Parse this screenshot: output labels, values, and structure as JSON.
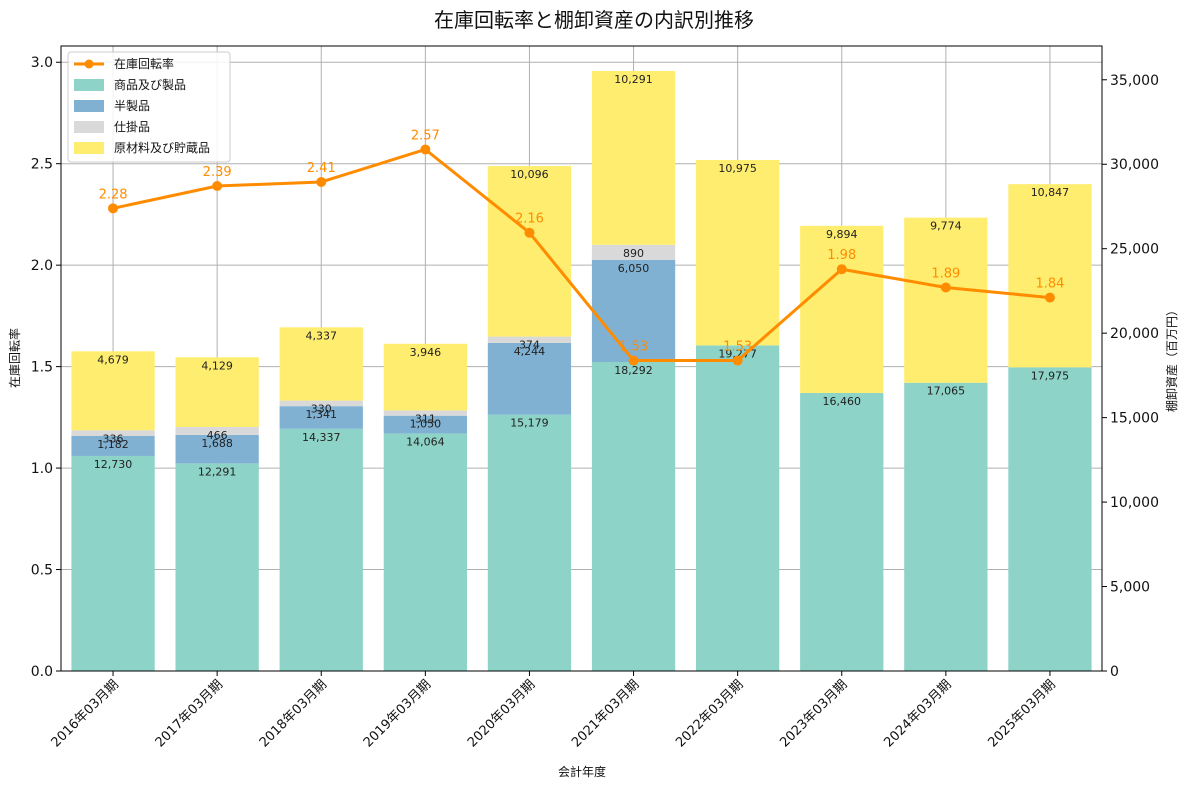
{
  "chart_data": {
    "type": "bar",
    "title": "在庫回転率と棚卸資産の内訳別推移",
    "xlabel": "会計年度",
    "ylabel_left": "在庫回転率",
    "ylabel_right": "棚卸資産（百万円）",
    "ylim_left": [
      0,
      3.08
    ],
    "ylim_right": [
      0,
      37000
    ],
    "yticks_left": [
      "0.0",
      "0.5",
      "1.0",
      "1.5",
      "2.0",
      "2.5",
      "3.0"
    ],
    "yticks_right": [
      "0",
      "5,000",
      "10,000",
      "15,000",
      "20,000",
      "25,000",
      "30,000",
      "35,000"
    ],
    "grid": true,
    "legend_position": "top-left",
    "categories": [
      "2016年03月期",
      "2017年03月期",
      "2018年03月期",
      "2019年03月期",
      "2020年03月期",
      "2021年03月期",
      "2022年03月期",
      "2023年03月期",
      "2024年03月期",
      "2025年03月期"
    ],
    "stacked_series": [
      {
        "name": "商品及び製品",
        "color": "#8dd3c7",
        "values": [
          12730,
          12291,
          14337,
          14064,
          15179,
          18292,
          19277,
          16460,
          17065,
          17975
        ],
        "labels": [
          "12,730",
          "12,291",
          "14,337",
          "14,064",
          "15,179",
          "18,292",
          "19,277",
          "16,460",
          "17,065",
          "17,975"
        ]
      },
      {
        "name": "半製品",
        "color": "#80b1d3",
        "values": [
          1182,
          1688,
          1341,
          1050,
          4244,
          6050,
          0,
          0,
          0,
          0
        ],
        "labels": [
          "1,182",
          "1,688",
          "1,341",
          "1,050",
          "4,244",
          "6,050",
          "",
          "",
          "",
          ""
        ]
      },
      {
        "name": "仕掛品",
        "color": "#d9d9d9",
        "values": [
          336,
          466,
          330,
          311,
          374,
          890,
          0,
          0,
          0,
          0
        ],
        "labels": [
          "336",
          "466",
          "330",
          "311",
          "374",
          "890",
          "",
          "",
          "",
          ""
        ]
      },
      {
        "name": "原材料及び貯蔵品",
        "color": "#ffed6f",
        "values": [
          4679,
          4129,
          4337,
          3946,
          10096,
          10291,
          10975,
          9894,
          9774,
          10847
        ],
        "labels": [
          "4,679",
          "4,129",
          "4,337",
          "3,946",
          "10,096",
          "10,291",
          "10,975",
          "9,894",
          "9,774",
          "10,847"
        ]
      }
    ],
    "line_series": {
      "name": "在庫回転率",
      "color": "#ff8c00",
      "values": [
        2.28,
        2.39,
        2.41,
        2.57,
        2.16,
        1.53,
        1.53,
        1.98,
        1.89,
        1.84
      ],
      "labels": [
        "2.28",
        "2.39",
        "2.41",
        "2.57",
        "2.16",
        "1.53",
        "1.53",
        "1.98",
        "1.89",
        "1.84"
      ]
    }
  }
}
